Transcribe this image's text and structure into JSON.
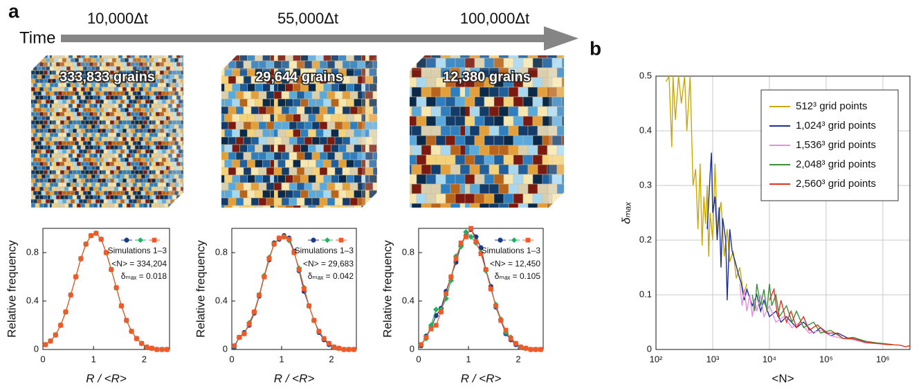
{
  "figure": {
    "panel_labels": [
      "a",
      "b"
    ],
    "time_label": "Time",
    "time_points": [
      "10,000Δt",
      "55,000Δt",
      "100,000Δt"
    ],
    "cube_labels": [
      "333,833 grains",
      "29,644 grains",
      "12,380 grains"
    ]
  },
  "chart_data": [
    {
      "type": "line",
      "xlabel": "R / <R>",
      "ylabel": "Relative frequency",
      "x": [
        0.05,
        0.15,
        0.25,
        0.35,
        0.45,
        0.55,
        0.65,
        0.75,
        0.85,
        0.95,
        1.05,
        1.15,
        1.25,
        1.35,
        1.45,
        1.55,
        1.65,
        1.75,
        1.85,
        1.95,
        2.05,
        2.15,
        2.25,
        2.35,
        2.45
      ],
      "xlim": [
        0,
        2.5
      ],
      "xticks": [
        0,
        1,
        2
      ],
      "ylim": [
        0,
        1
      ],
      "yticks": [
        0,
        0.4,
        0.8
      ],
      "legend_label": "Simulations 1–3",
      "annotations": [
        "<N> = 334,204",
        "δₘₐₓ = 0.018"
      ],
      "series": [
        {
          "color": "#1b3a8c",
          "marker": "circle",
          "values": [
            0.04,
            0.07,
            0.12,
            0.2,
            0.31,
            0.45,
            0.6,
            0.75,
            0.87,
            0.94,
            0.96,
            0.91,
            0.8,
            0.66,
            0.51,
            0.36,
            0.24,
            0.15,
            0.09,
            0.05,
            0.02,
            0.01,
            0,
            0,
            0
          ]
        },
        {
          "color": "#22b060",
          "marker": "diamond",
          "values": [
            0.04,
            0.07,
            0.12,
            0.2,
            0.31,
            0.45,
            0.6,
            0.75,
            0.87,
            0.94,
            0.96,
            0.91,
            0.8,
            0.66,
            0.51,
            0.36,
            0.24,
            0.15,
            0.09,
            0.05,
            0.02,
            0.01,
            0,
            0,
            0
          ]
        },
        {
          "color": "#f05a28",
          "marker": "square",
          "values": [
            0.04,
            0.07,
            0.12,
            0.2,
            0.31,
            0.45,
            0.6,
            0.75,
            0.87,
            0.94,
            0.96,
            0.91,
            0.8,
            0.66,
            0.51,
            0.36,
            0.24,
            0.15,
            0.09,
            0.05,
            0.02,
            0.01,
            0,
            0,
            0
          ]
        }
      ]
    },
    {
      "type": "line",
      "xlabel": "R / <R>",
      "ylabel": "Relative frequency",
      "x": [
        0.05,
        0.15,
        0.25,
        0.35,
        0.45,
        0.55,
        0.65,
        0.75,
        0.85,
        0.95,
        1.05,
        1.15,
        1.25,
        1.35,
        1.45,
        1.55,
        1.65,
        1.75,
        1.85,
        1.95,
        2.05,
        2.15,
        2.25,
        2.35,
        2.45
      ],
      "xlim": [
        0,
        2.5
      ],
      "xticks": [
        0,
        1,
        2
      ],
      "ylim": [
        0,
        1
      ],
      "yticks": [
        0,
        0.4,
        0.8
      ],
      "legend_label": "Simulations 1–3",
      "annotations": [
        "<N> = 29,683",
        "δₘₐₓ = 0.042"
      ],
      "series": [
        {
          "color": "#1b3a8c",
          "marker": "circle",
          "values": [
            0.02,
            0.1,
            0.14,
            0.2,
            0.3,
            0.44,
            0.6,
            0.74,
            0.88,
            0.91,
            0.94,
            0.92,
            0.81,
            0.65,
            0.48,
            0.36,
            0.24,
            0.14,
            0.08,
            0.04,
            0.02,
            0.01,
            0,
            0,
            0
          ]
        },
        {
          "color": "#22b060",
          "marker": "diamond",
          "values": [
            0.03,
            0.1,
            0.13,
            0.22,
            0.31,
            0.45,
            0.61,
            0.76,
            0.87,
            0.92,
            0.93,
            0.9,
            0.8,
            0.67,
            0.51,
            0.36,
            0.24,
            0.15,
            0.09,
            0.05,
            0.02,
            0.01,
            0,
            0,
            0
          ]
        },
        {
          "color": "#f05a28",
          "marker": "square",
          "values": [
            0.03,
            0.1,
            0.13,
            0.21,
            0.31,
            0.45,
            0.6,
            0.75,
            0.87,
            0.92,
            0.93,
            0.91,
            0.8,
            0.66,
            0.5,
            0.36,
            0.24,
            0.15,
            0.09,
            0.05,
            0.02,
            0.01,
            0,
            0,
            0
          ]
        }
      ]
    },
    {
      "type": "line",
      "xlabel": "R / <R>",
      "ylabel": "Relative frequency",
      "x": [
        0.05,
        0.15,
        0.25,
        0.35,
        0.45,
        0.55,
        0.65,
        0.75,
        0.85,
        0.95,
        1.05,
        1.15,
        1.25,
        1.35,
        1.45,
        1.55,
        1.65,
        1.75,
        1.85,
        1.95,
        2.05,
        2.15,
        2.25,
        2.35,
        2.45
      ],
      "xlim": [
        0,
        2.5
      ],
      "xticks": [
        0,
        1,
        2
      ],
      "ylim": [
        0,
        1
      ],
      "yticks": [
        0,
        0.4,
        0.8
      ],
      "legend_label": "Simulations 1–3",
      "annotations": [
        "<N> = 12,450",
        "δₘₐₓ = 0.105"
      ],
      "series": [
        {
          "color": "#1b3a8c",
          "marker": "circle",
          "values": [
            0.03,
            0.11,
            0.18,
            0.28,
            0.34,
            0.48,
            0.6,
            0.72,
            0.86,
            0.94,
            0.99,
            0.93,
            0.84,
            0.66,
            0.52,
            0.35,
            0.24,
            0.13,
            0.08,
            0.04,
            0.02,
            0.01,
            0,
            0,
            0
          ]
        },
        {
          "color": "#22b060",
          "marker": "diamond",
          "values": [
            0.04,
            0.09,
            0.2,
            0.33,
            0.33,
            0.42,
            0.57,
            0.77,
            0.85,
            0.97,
            0.93,
            0.88,
            0.8,
            0.65,
            0.5,
            0.37,
            0.25,
            0.14,
            0.1,
            0.05,
            0.02,
            0.01,
            0,
            0,
            0
          ]
        },
        {
          "color": "#f05a28",
          "marker": "square",
          "values": [
            0.04,
            0.1,
            0.17,
            0.2,
            0.31,
            0.46,
            0.6,
            0.75,
            0.88,
            0.93,
            1.0,
            0.89,
            0.79,
            0.66,
            0.5,
            0.36,
            0.24,
            0.16,
            0.09,
            0.05,
            0.02,
            0.01,
            0,
            0,
            0
          ]
        }
      ]
    },
    {
      "type": "line",
      "log_x": true,
      "grid": true,
      "xlabel": "<N>",
      "ylabel": "δₘₐₓ",
      "xlim": [
        100,
        3000000
      ],
      "xticks": [
        {
          "value": 100,
          "label": "10²"
        },
        {
          "value": 1000,
          "label": "10³"
        },
        {
          "value": 10000,
          "label": "10⁴"
        },
        {
          "value": 100000,
          "label": "10⁵"
        },
        {
          "value": 1000000,
          "label": "10⁶"
        }
      ],
      "ylim": [
        0,
        0.5
      ],
      "yticks": [
        0,
        0.1,
        0.2,
        0.3,
        0.4,
        0.5
      ],
      "series": [
        {
          "name": "512³ grid points",
          "color": "#c9a800",
          "x": [
            150,
            170,
            190,
            200,
            220,
            250,
            280,
            320,
            350,
            400,
            450,
            500,
            550,
            600,
            650,
            700,
            750,
            800,
            850,
            900,
            1000,
            1100,
            1200,
            1400,
            1600,
            1800,
            2000,
            2300,
            2600,
            3000,
            3500,
            4000
          ],
          "values": [
            0.49,
            0.5,
            0.37,
            0.5,
            0.42,
            0.5,
            0.45,
            0.5,
            0.4,
            0.5,
            0.3,
            0.33,
            0.22,
            0.34,
            0.19,
            0.28,
            0.23,
            0.3,
            0.17,
            0.25,
            0.2,
            0.34,
            0.22,
            0.27,
            0.17,
            0.22,
            0.16,
            0.18,
            0.13,
            0.15,
            0.1,
            0.12
          ]
        },
        {
          "name": "1,024³ grid points",
          "color": "#1a2e9e",
          "x": [
            800,
            900,
            950,
            1000,
            1100,
            1200,
            1300,
            1400,
            1500,
            1700,
            1800,
            2000,
            2200,
            2500,
            2800,
            3200,
            3600,
            4000,
            5000,
            6000,
            7000,
            8000,
            10000,
            13000,
            16000,
            20000,
            30000,
            40000,
            60000,
            80000,
            120000,
            160000,
            250000,
            350000,
            500000
          ],
          "values": [
            0.22,
            0.32,
            0.36,
            0.25,
            0.28,
            0.2,
            0.26,
            0.15,
            0.24,
            0.2,
            0.09,
            0.22,
            0.18,
            0.16,
            0.14,
            0.12,
            0.09,
            0.11,
            0.08,
            0.1,
            0.07,
            0.09,
            0.06,
            0.07,
            0.05,
            0.06,
            0.04,
            0.05,
            0.03,
            0.04,
            0.025,
            0.03,
            0.02,
            0.018,
            0.015
          ]
        },
        {
          "name": "1,536³ grid points",
          "color": "#e88ee0",
          "x": [
            3000,
            3300,
            3600,
            4000,
            4500,
            5000,
            5500,
            6000,
            7000,
            8000,
            10000,
            13000,
            18000,
            25000,
            35000,
            50000,
            80000,
            120000,
            200000,
            300000,
            500000,
            1000000
          ],
          "values": [
            0.12,
            0.08,
            0.11,
            0.07,
            0.1,
            0.06,
            0.09,
            0.07,
            0.1,
            0.06,
            0.08,
            0.05,
            0.06,
            0.04,
            0.05,
            0.03,
            0.035,
            0.025,
            0.02,
            0.018,
            0.012,
            0.01
          ]
        },
        {
          "name": "2,048³ grid points",
          "color": "#3a8f3a",
          "x": [
            5000,
            5500,
            6000,
            7000,
            8000,
            9000,
            10000,
            11000,
            13000,
            15000,
            20000,
            25000,
            30000,
            40000,
            60000,
            80000,
            120000,
            200000,
            300000,
            500000,
            800000,
            1500000
          ],
          "values": [
            0.1,
            0.07,
            0.12,
            0.08,
            0.11,
            0.07,
            0.12,
            0.08,
            0.1,
            0.06,
            0.08,
            0.05,
            0.07,
            0.04,
            0.05,
            0.03,
            0.035,
            0.02,
            0.022,
            0.015,
            0.012,
            0.009
          ]
        },
        {
          "name": "2,560³ grid points",
          "color": "#e0321c",
          "x": [
            10000,
            12000,
            14000,
            16000,
            20000,
            24000,
            30000,
            40000,
            50000,
            70000,
            100000,
            150000,
            200000,
            300000,
            500000,
            800000,
            1200000,
            2000000,
            2500000,
            3000000
          ],
          "values": [
            0.09,
            0.11,
            0.06,
            0.09,
            0.05,
            0.07,
            0.04,
            0.06,
            0.035,
            0.045,
            0.03,
            0.03,
            0.02,
            0.02,
            0.013,
            0.011,
            0.009,
            0.008,
            0.005,
            0.007
          ]
        }
      ]
    }
  ]
}
